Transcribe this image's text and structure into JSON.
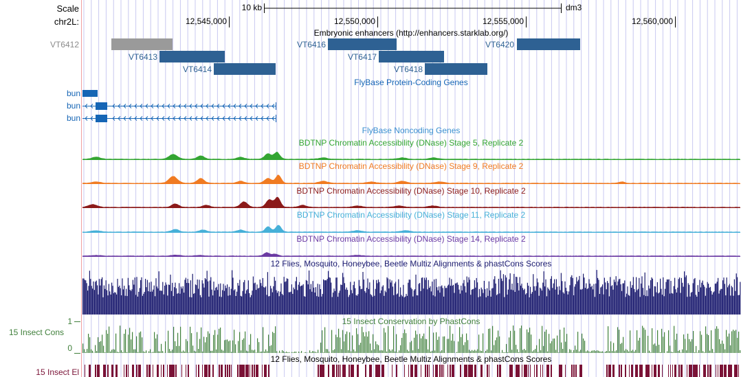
{
  "ruler": {
    "scale_label": "Scale",
    "chrom_label": "chr2L:",
    "scale_bar_label": "10 kb",
    "assembly": "dm3",
    "positions": [
      "12,545,000",
      "12,550,000",
      "12,555,000",
      "12,560,000"
    ]
  },
  "tracks": {
    "enhancers": {
      "title": "Embryonic enhancers (http://enhancers.starklab.org/)",
      "items": [
        {
          "name": "VT6412",
          "color": "#9a9a9a"
        },
        {
          "name": "VT6413",
          "color": "#2e6193"
        },
        {
          "name": "VT6414",
          "color": "#2e6193"
        },
        {
          "name": "VT6416",
          "color": "#2e6193"
        },
        {
          "name": "VT6417",
          "color": "#2e6193"
        },
        {
          "name": "VT6418",
          "color": "#2e6193"
        },
        {
          "name": "VT6420",
          "color": "#2e6193"
        }
      ]
    },
    "protein_coding": {
      "title": "FlyBase Protein-Coding Genes",
      "genes": [
        "bun",
        "bun",
        "bun"
      ],
      "color": "#1565b5"
    },
    "noncoding": {
      "title": "FlyBase Noncoding Genes",
      "color": "#3a8fd0"
    },
    "dnase": [
      {
        "title": "BDTNP Chromatin Accessibility (DNase) Stage 5, Replicate 2",
        "color": "#33a532"
      },
      {
        "title": "BDTNP Chromatin Accessibility (DNase) Stage 9, Replicate 2",
        "color": "#f07b22"
      },
      {
        "title": "BDTNP Chromatin Accessibility (DNase) Stage 10, Replicate 2",
        "color": "#8b1a1a"
      },
      {
        "title": "BDTNP Chromatin Accessibility (DNase) Stage 11, Replicate 2",
        "color": "#46b0d8"
      },
      {
        "title": "BDTNP Chromatin Accessibility (DNase) Stage 14, Replicate 2",
        "color": "#6b3aa3"
      }
    ],
    "multiz": {
      "title": "12 Flies, Mosquito, Honeybee, Beetle Multiz Alignments & phastCons Scores",
      "color": "#1a1a6e"
    },
    "phastcons": {
      "title": "15 Insect Conservation by PhastCons",
      "side_label": "15 Insect Cons",
      "ymax": "1",
      "ymin": "0",
      "color": "#3f7f3a"
    },
    "elements": {
      "title": "12 Flies, Mosquito, Honeybee, Beetle Multiz Alignments & phastCons Scores",
      "side_label": "15 Insect El",
      "color": "#7a1236"
    }
  },
  "colors": {
    "gridline": "#c8c8f0",
    "ruler": "#000000",
    "left_margin_line": "#f0a0a0"
  }
}
